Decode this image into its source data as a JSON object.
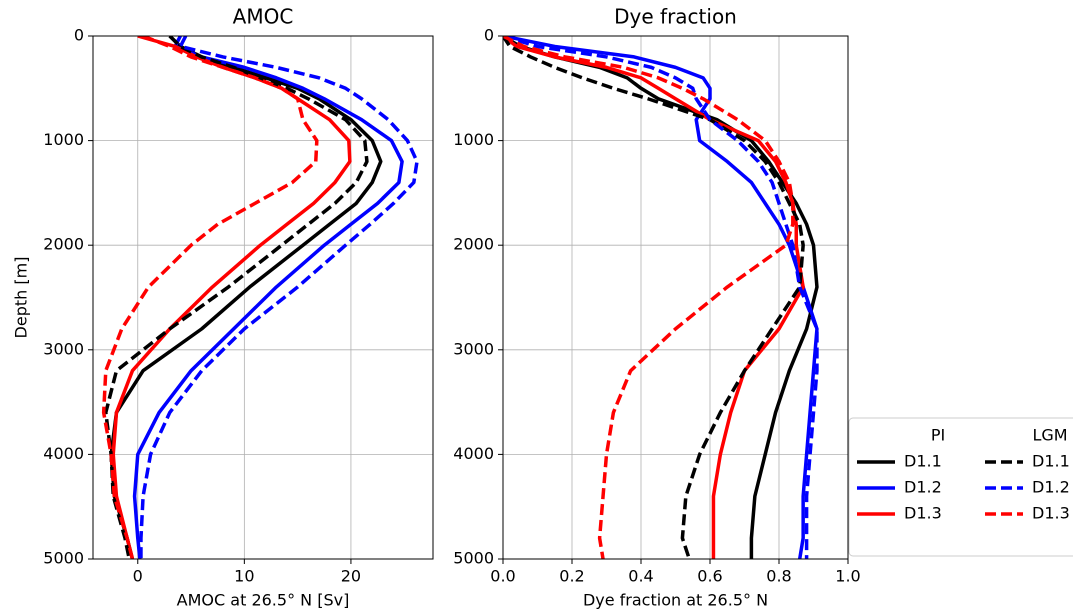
{
  "chart_data": [
    {
      "type": "line",
      "title": "AMOC",
      "xlabel": "AMOC at 26.5° N [Sv]",
      "ylabel": "Depth [m]",
      "xlim": [
        -4.2,
        27.7
      ],
      "xticks": [
        0,
        10,
        20
      ],
      "ylim": [
        5000,
        0
      ],
      "yticks": [
        0,
        1000,
        2000,
        3000,
        4000,
        5000
      ],
      "grid": true,
      "y": [
        0,
        100,
        200,
        300,
        400,
        500,
        600,
        800,
        1000,
        1200,
        1400,
        1600,
        1800,
        2000,
        2400,
        2800,
        3200,
        3600,
        4000,
        4400,
        4800,
        5000
      ],
      "series": [
        {
          "name": "D1.1",
          "color": "#000000",
          "dash": "solid",
          "values": [
            3,
            4,
            6,
            9,
            12,
            15,
            17,
            20,
            22,
            22.8,
            22,
            20.5,
            18,
            15.5,
            10.5,
            6,
            0.5,
            -2,
            -2.5,
            -2.2,
            -1,
            -0.5
          ]
        },
        {
          "name": "D1.2",
          "color": "#0000ff",
          "dash": "solid",
          "values": [
            4,
            3.5,
            6,
            10,
            13,
            15.5,
            17.5,
            21,
            23.8,
            24.8,
            24.5,
            22.5,
            20,
            17.5,
            13,
            9,
            5,
            2,
            0,
            -0.3,
            0,
            0.2
          ]
        },
        {
          "name": "D1.3",
          "color": "#ff0000",
          "dash": "solid",
          "values": [
            0,
            3.5,
            5.5,
            8,
            11,
            13.5,
            15,
            18,
            19.8,
            19.9,
            18.5,
            16.5,
            14,
            11.5,
            7,
            3,
            -0.5,
            -2,
            -2.3,
            -2,
            -1,
            -0.5
          ]
        },
        {
          "name": "D1.1",
          "color": "#000000",
          "dash": "dashed",
          "values": [
            3,
            4,
            6,
            9,
            11.5,
            14,
            16,
            19.5,
            21.3,
            21.5,
            20.5,
            18.5,
            16,
            13.5,
            8.5,
            3,
            -2,
            -3,
            -2.5,
            -2.3,
            -1.2,
            -0.8
          ]
        },
        {
          "name": "D1.2",
          "color": "#0000ff",
          "dash": "dashed",
          "values": [
            4.5,
            4,
            8,
            13,
            17,
            19.5,
            21,
            23.5,
            25.3,
            26.2,
            25.9,
            24,
            21.8,
            19.5,
            15,
            10,
            6,
            3,
            1.2,
            0.5,
            0.3,
            0.3
          ]
        },
        {
          "name": "D1.3",
          "color": "#ff0000",
          "dash": "dashed",
          "values": [
            0.5,
            3,
            5,
            8,
            11,
            13.5,
            15,
            15.5,
            16.8,
            16.7,
            14.5,
            11,
            7.5,
            5,
            1,
            -1.5,
            -3,
            -3.2,
            -2.5,
            -2.2,
            -1,
            -0.5
          ]
        }
      ]
    },
    {
      "type": "line",
      "title": "Dye fraction",
      "xlabel": "Dye fraction at 26.5° N",
      "xlim": [
        0,
        1
      ],
      "xticks": [
        {
          "value": 0,
          "label": "0.0"
        },
        0.2,
        0.4,
        0.6,
        0.8,
        {
          "value": 1,
          "label": "1.0"
        }
      ],
      "ylim": [
        5000,
        0
      ],
      "yticks": [
        0,
        1000,
        2000,
        3000,
        4000,
        5000
      ],
      "grid": true,
      "legend": {
        "position": "outside right",
        "titles": [
          "PI",
          "LGM"
        ]
      },
      "y": [
        0,
        100,
        200,
        300,
        400,
        500,
        600,
        800,
        1000,
        1200,
        1400,
        1600,
        1800,
        2000,
        2400,
        2800,
        3200,
        3600,
        4000,
        4400,
        4800,
        5000
      ],
      "series": [
        {
          "name": "D1.1",
          "color": "#000000",
          "dash": "solid",
          "values": [
            0,
            0.05,
            0.15,
            0.28,
            0.36,
            0.4,
            0.45,
            0.62,
            0.72,
            0.77,
            0.81,
            0.85,
            0.88,
            0.9,
            0.91,
            0.88,
            0.83,
            0.79,
            0.76,
            0.73,
            0.72,
            0.72
          ]
        },
        {
          "name": "D1.2",
          "color": "#0000ff",
          "dash": "solid",
          "values": [
            0,
            0.15,
            0.38,
            0.5,
            0.58,
            0.6,
            0.6,
            0.56,
            0.57,
            0.65,
            0.72,
            0.76,
            0.8,
            0.83,
            0.87,
            0.91,
            0.9,
            0.89,
            0.88,
            0.87,
            0.87,
            0.86
          ]
        },
        {
          "name": "D1.3",
          "color": "#ff0000",
          "dash": "solid",
          "values": [
            0,
            0.04,
            0.15,
            0.3,
            0.4,
            0.45,
            0.5,
            0.6,
            0.74,
            0.79,
            0.82,
            0.84,
            0.85,
            0.85,
            0.87,
            0.8,
            0.7,
            0.66,
            0.63,
            0.61,
            0.61,
            0.61
          ]
        },
        {
          "name": "D1.1",
          "color": "#000000",
          "dash": "dashed",
          "values": [
            0,
            0.02,
            0.08,
            0.15,
            0.23,
            0.32,
            0.42,
            0.6,
            0.7,
            0.76,
            0.8,
            0.83,
            0.86,
            0.87,
            0.86,
            0.78,
            0.7,
            0.63,
            0.57,
            0.53,
            0.52,
            0.54
          ]
        },
        {
          "name": "D1.2",
          "color": "#0000ff",
          "dash": "dashed",
          "values": [
            0,
            0.1,
            0.3,
            0.43,
            0.5,
            0.55,
            0.56,
            0.6,
            0.68,
            0.74,
            0.78,
            0.8,
            0.82,
            0.84,
            0.86,
            0.91,
            0.91,
            0.9,
            0.89,
            0.88,
            0.88,
            0.88
          ]
        },
        {
          "name": "D1.3",
          "color": "#ff0000",
          "dash": "dashed",
          "values": [
            0,
            0.06,
            0.18,
            0.35,
            0.45,
            0.52,
            0.58,
            0.68,
            0.76,
            0.8,
            0.83,
            0.84,
            0.84,
            0.82,
            0.65,
            0.5,
            0.37,
            0.32,
            0.3,
            0.29,
            0.28,
            0.29
          ]
        }
      ]
    }
  ]
}
